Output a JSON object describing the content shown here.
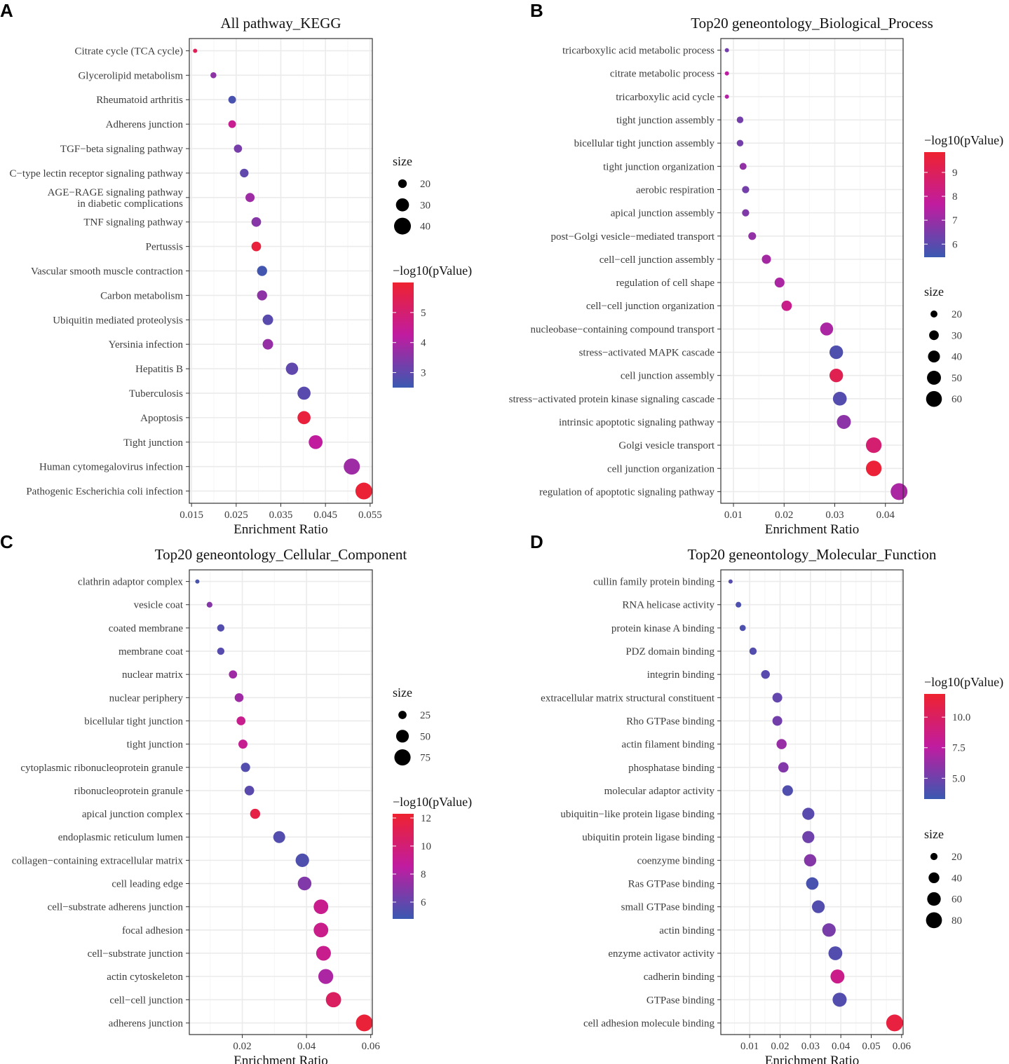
{
  "chart_data": [
    {
      "panel_letter": "A",
      "type": "scatter",
      "title": "All pathway_KEGG",
      "xlabel": "Enrichment Ratio",
      "xlim": [
        0.0145,
        0.0555
      ],
      "xticks": [
        0.015,
        0.025,
        0.035,
        0.045,
        0.055
      ],
      "xtick_labels": [
        "0.015",
        "0.025",
        "0.035",
        "0.045",
        "0.055"
      ],
      "categories": [
        "Citrate cycle (TCA cycle)",
        "Glycerolipid metabolism",
        "Rheumatoid arthritis",
        "Adherens junction",
        "TGF−beta signaling pathway",
        "C−type lectin receptor signaling pathway",
        "AGE−RAGE signaling pathway\nin diabetic complications",
        "TNF signaling pathway",
        "Pertussis",
        "Vascular smooth muscle contraction",
        "Carbon metabolism",
        "Ubiquitin mediated proteolysis",
        "Yersinia infection",
        "Hepatitis B",
        "Tuberculosis",
        "Apoptosis",
        "Tight junction",
        "Human cytomegalovirus infection",
        "Pathogenic Escherichia coli infection"
      ],
      "x": [
        0.0158,
        0.0199,
        0.0241,
        0.0241,
        0.0254,
        0.0268,
        0.0281,
        0.0295,
        0.0295,
        0.0308,
        0.0308,
        0.0321,
        0.0321,
        0.0375,
        0.0402,
        0.0402,
        0.0428,
        0.0509,
        0.0536
      ],
      "size": [
        12,
        15,
        18,
        18,
        19,
        20,
        21,
        22,
        22,
        23,
        23,
        24,
        24,
        28,
        30,
        30,
        32,
        38,
        40
      ],
      "color_value": [
        5.4,
        3.6,
        2.7,
        4.5,
        3.3,
        3.0,
        3.8,
        3.5,
        5.8,
        2.6,
        3.6,
        2.9,
        3.7,
        3.0,
        2.9,
        5.8,
        4.3,
        3.8,
        5.9
      ],
      "size_legend": {
        "title": "size",
        "values": [
          20,
          30,
          40
        ],
        "labels": [
          "20",
          "30",
          "40"
        ]
      },
      "color_legend": {
        "title": "−log10(pValue)",
        "range": [
          2.5,
          6.0
        ],
        "ticks": [
          3,
          4,
          5
        ],
        "tick_labels": [
          "3",
          "4",
          "5"
        ]
      }
    },
    {
      "panel_letter": "B",
      "type": "scatter",
      "title": "Top20 geneontology_Biological_Process",
      "xlabel": "Enrichment Ratio",
      "xlim": [
        0.0075,
        0.0435
      ],
      "xticks": [
        0.01,
        0.02,
        0.03,
        0.04
      ],
      "xtick_labels": [
        "0.01",
        "0.02",
        "0.03",
        "0.04"
      ],
      "categories": [
        "tricarboxylic acid metabolic process",
        "citrate metabolic process",
        "tricarboxylic acid cycle",
        "tight junction assembly",
        "bicellular tight junction assembly",
        "tight junction organization",
        "aerobic respiration",
        "apical junction assembly",
        "post−Golgi vesicle−mediated transport",
        "cell−cell junction assembly",
        "regulation of cell shape",
        "cell−cell junction organization",
        "nucleobase−containing compound transport",
        "stress−activated MAPK cascade",
        "cell junction assembly",
        "stress−activated protein kinase signaling cascade",
        "intrinsic apoptotic signaling pathway",
        "Golgi vesicle transport",
        "cell junction organization",
        "regulation of apoptotic signaling pathway"
      ],
      "x": [
        0.0087,
        0.0087,
        0.0087,
        0.0113,
        0.0113,
        0.0119,
        0.0124,
        0.0124,
        0.0137,
        0.0165,
        0.0191,
        0.0205,
        0.0284,
        0.0303,
        0.0303,
        0.031,
        0.0318,
        0.0377,
        0.0377,
        0.0427
      ],
      "size": [
        12,
        12,
        12,
        19,
        19,
        20,
        21,
        21,
        23,
        28,
        31,
        33,
        45,
        48,
        48,
        49,
        50,
        59,
        59,
        66
      ],
      "color_value": [
        6.4,
        7.6,
        7.4,
        6.4,
        6.4,
        6.9,
        6.4,
        6.6,
        6.9,
        7.2,
        7.3,
        8.1,
        7.3,
        5.8,
        9.2,
        5.9,
        6.8,
        8.6,
        9.7,
        7.3
      ],
      "size_legend": {
        "title": "size",
        "values": [
          20,
          30,
          40,
          50,
          60
        ],
        "labels": [
          "20",
          "30",
          "40",
          "50",
          "60"
        ]
      },
      "color_legend": {
        "title": "−log10(pValue)",
        "range": [
          5.45,
          9.85
        ],
        "ticks": [
          6,
          7,
          8,
          9
        ],
        "tick_labels": [
          "6",
          "7",
          "8",
          "9"
        ]
      }
    },
    {
      "panel_letter": "C",
      "type": "scatter",
      "title": "Top20 geneontology_Cellular_Component",
      "xlabel": "Enrichment Ratio",
      "xlim": [
        0.0035,
        0.0605
      ],
      "xticks": [
        0.02,
        0.04,
        0.06
      ],
      "xtick_labels": [
        "0.02",
        "0.04",
        "0.06"
      ],
      "categories": [
        "clathrin adaptor complex",
        "vesicle coat",
        "coated membrane",
        "membrane coat",
        "nuclear matrix",
        "nuclear periphery",
        "bicellular tight junction",
        "tight junction",
        "cytoplasmic ribonucleoprotein granule",
        "ribonucleoprotein granule",
        "apical junction complex",
        "endoplasmic reticulum lumen",
        "collagen−containing extracellular matrix",
        "cell leading edge",
        "cell−substrate adherens junction",
        "focal adhesion",
        "cell−substrate junction",
        "actin cytoskeleton",
        "cell−cell junction",
        "adherens junction"
      ],
      "x": [
        0.006,
        0.0098,
        0.0133,
        0.0133,
        0.0171,
        0.019,
        0.0196,
        0.0202,
        0.021,
        0.0222,
        0.024,
        0.0315,
        0.0387,
        0.0394,
        0.0445,
        0.0445,
        0.0453,
        0.046,
        0.0484,
        0.058
      ],
      "size": [
        10,
        15,
        21,
        21,
        25,
        28,
        28,
        29,
        30,
        32,
        34,
        45,
        55,
        56,
        63,
        63,
        64,
        65,
        68,
        80
      ],
      "color_value": [
        5.2,
        6.9,
        5.5,
        5.6,
        7.6,
        7.6,
        9.2,
        9.0,
        5.5,
        5.7,
        11.6,
        5.5,
        5.4,
        6.8,
        9.2,
        9.3,
        9.2,
        8.0,
        10.7,
        12.0
      ],
      "size_legend": {
        "title": "size",
        "values": [
          25,
          50,
          75
        ],
        "labels": [
          "25",
          "50",
          "75"
        ]
      },
      "color_legend": {
        "title": "−log10(pValue)",
        "range": [
          4.8,
          12.3
        ],
        "ticks": [
          6,
          8,
          10,
          12
        ],
        "tick_labels": [
          "6",
          "8",
          "10",
          "12"
        ]
      }
    },
    {
      "panel_letter": "D",
      "type": "scatter",
      "title": "Top20 geneontology_Molecular_Function",
      "xlabel": "Enrichment Ratio",
      "xlim": [
        0.0005,
        0.0605
      ],
      "xticks": [
        0.01,
        0.02,
        0.03,
        0.04,
        0.05,
        0.06
      ],
      "xtick_labels": [
        "0.01",
        "0.02",
        "0.03",
        "0.04",
        "0.05",
        "0.06"
      ],
      "categories": [
        "cullin family protein binding",
        "RNA helicase activity",
        "protein kinase A binding",
        "PDZ domain binding",
        "integrin binding",
        "extracellular matrix structural constituent",
        "Rho GTPase binding",
        "actin filament binding",
        "phosphatase binding",
        "molecular adaptor activity",
        "ubiquitin−like protein ligase binding",
        "ubiquitin protein ligase binding",
        "coenzyme binding",
        "Ras GTPase binding",
        "small GTPase binding",
        "actin binding",
        "enzyme activator activity",
        "cadherin binding",
        "GTPase binding",
        "cell adhesion molecule binding"
      ],
      "x": [
        0.0037,
        0.0063,
        0.0077,
        0.0111,
        0.0152,
        0.0191,
        0.0191,
        0.0205,
        0.0211,
        0.0225,
        0.0293,
        0.0293,
        0.0299,
        0.0306,
        0.0326,
        0.0361,
        0.0382,
        0.0389,
        0.0396,
        0.0577
      ],
      "size": [
        9,
        14,
        16,
        21,
        28,
        34,
        34,
        36,
        37,
        39,
        49,
        49,
        50,
        51,
        54,
        59,
        62,
        63,
        64,
        88
      ],
      "color_value": [
        4.2,
        3.9,
        3.9,
        4.1,
        4.3,
        4.6,
        5.1,
        6.3,
        5.6,
        4.0,
        4.3,
        5.0,
        5.7,
        3.8,
        4.1,
        5.3,
        4.1,
        8.5,
        4.1,
        11.3
      ],
      "size_legend": {
        "title": "size",
        "values": [
          20,
          40,
          60,
          80
        ],
        "labels": [
          "20",
          "40",
          "60",
          "80"
        ]
      },
      "color_legend": {
        "title": "−log10(pValue)",
        "range": [
          3.3,
          11.9
        ],
        "ticks": [
          5.0,
          7.5,
          10.0
        ],
        "tick_labels": [
          "5.0",
          "7.5",
          "10.0"
        ]
      }
    }
  ],
  "style": {
    "low_color": "#3a59b1",
    "mid_color": "#c01ca0",
    "high_color": "#ee2230",
    "panel_border": "#333333",
    "grid_major": "#ebebeb",
    "grid_minor": "#f5f5f5",
    "text_color": "#3d3d3d",
    "legend_dot": "#000000"
  }
}
